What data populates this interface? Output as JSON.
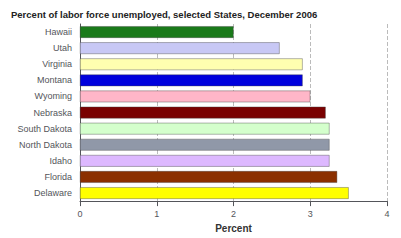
{
  "chart_data": {
    "type": "bar",
    "orientation": "horizontal",
    "title": "Percent of labor force unemployed, selected States, December 2006",
    "categories": [
      "Hawaii",
      "Utah",
      "Virginia",
      "Montana",
      "Wyoming",
      "Nebraska",
      "South Dakota",
      "North Dakota",
      "Idaho",
      "Florida",
      "Delaware"
    ],
    "values": [
      2.0,
      2.6,
      2.9,
      2.9,
      3.0,
      3.2,
      3.25,
      3.25,
      3.25,
      3.35,
      3.5
    ],
    "colors": [
      "#1a7a1a",
      "#c8c8f5",
      "#ffffb0",
      "#0000dd",
      "#ffb6c8",
      "#7a0000",
      "#d4ffcc",
      "#9098a8",
      "#ddb8ff",
      "#8b3000",
      "#ffff00"
    ],
    "xlabel": "Percent",
    "xlim": [
      0,
      4
    ],
    "xticks": [
      0,
      1,
      2,
      3,
      4
    ],
    "grid": true
  }
}
